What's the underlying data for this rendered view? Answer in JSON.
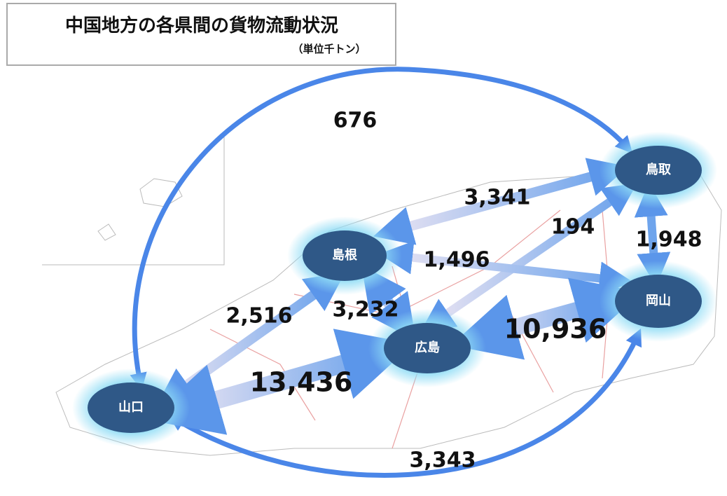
{
  "header": {
    "title": "中国地方の各県間の貨物流動状況",
    "subtitle": "（単位千トン）"
  },
  "nodes": [
    {
      "label": "鳥取"
    },
    {
      "label": "島根"
    },
    {
      "label": "岡山"
    },
    {
      "label": "広島"
    },
    {
      "label": "山口"
    }
  ],
  "flows": [
    {
      "label": "676"
    },
    {
      "label": "3,341"
    },
    {
      "label": "194"
    },
    {
      "label": "1,948"
    },
    {
      "label": "1,496"
    },
    {
      "label": "2,516"
    },
    {
      "label": "3,232"
    },
    {
      "label": "10,936"
    },
    {
      "label": "13,436"
    },
    {
      "label": "3,343"
    }
  ]
}
